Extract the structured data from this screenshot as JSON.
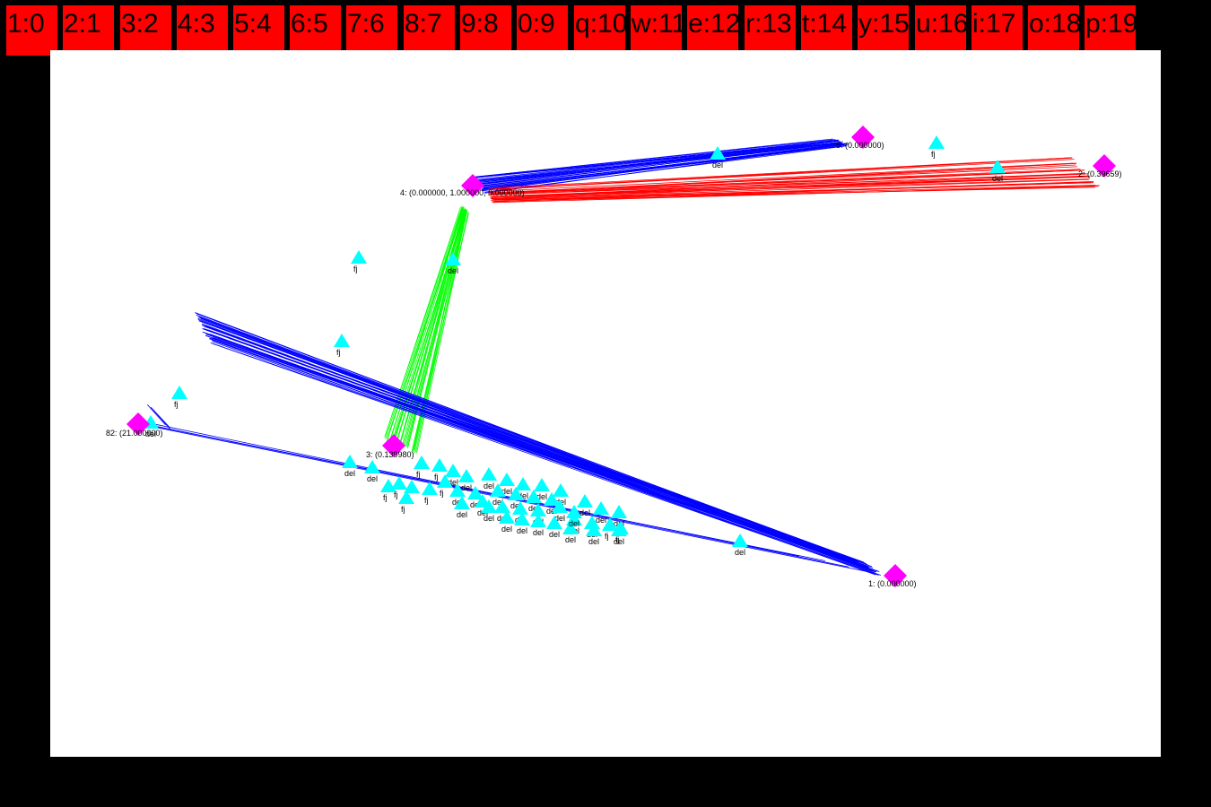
{
  "tabs": [
    {
      "label": "1:0"
    },
    {
      "label": "2:1"
    },
    {
      "label": "3:2"
    },
    {
      "label": "4:3"
    },
    {
      "label": "5:4"
    },
    {
      "label": "6:5"
    },
    {
      "label": "7:6"
    },
    {
      "label": "8:7"
    },
    {
      "label": "9:8"
    },
    {
      "label": "0:9"
    },
    {
      "label": "q:10"
    },
    {
      "label": "w:11"
    },
    {
      "label": "e:12"
    },
    {
      "label": "r:13"
    },
    {
      "label": "t:14"
    },
    {
      "label": "y:15"
    },
    {
      "label": "u:16"
    },
    {
      "label": "i:17"
    },
    {
      "label": "o:18"
    },
    {
      "label": "p:19"
    }
  ],
  "colors": {
    "tab_bg": "#ff0000",
    "background": "#000000",
    "canvas": "#ffffff",
    "node": "#ff00ff",
    "marker": "#00ffff",
    "edge_blue": "#0000ff",
    "edge_red": "#ff0000",
    "edge_green": "#00ff00"
  },
  "nodes": {
    "n5": {
      "label": "5: (0.000000)"
    },
    "n4": {
      "label": "4: (0.000000, 1.000000, 0.000000)"
    },
    "n2": {
      "label": "2: (0.39659)"
    },
    "n3": {
      "label": "3: (0.139980)"
    },
    "n82": {
      "label": "82: (21.000000)"
    },
    "n1": {
      "label": "1: (0.000000)"
    }
  },
  "markers": {
    "del": "del",
    "fj": "fj"
  },
  "icons": {
    "node": "magenta-diamond-icon",
    "marker": "cyan-triangle-icon"
  }
}
